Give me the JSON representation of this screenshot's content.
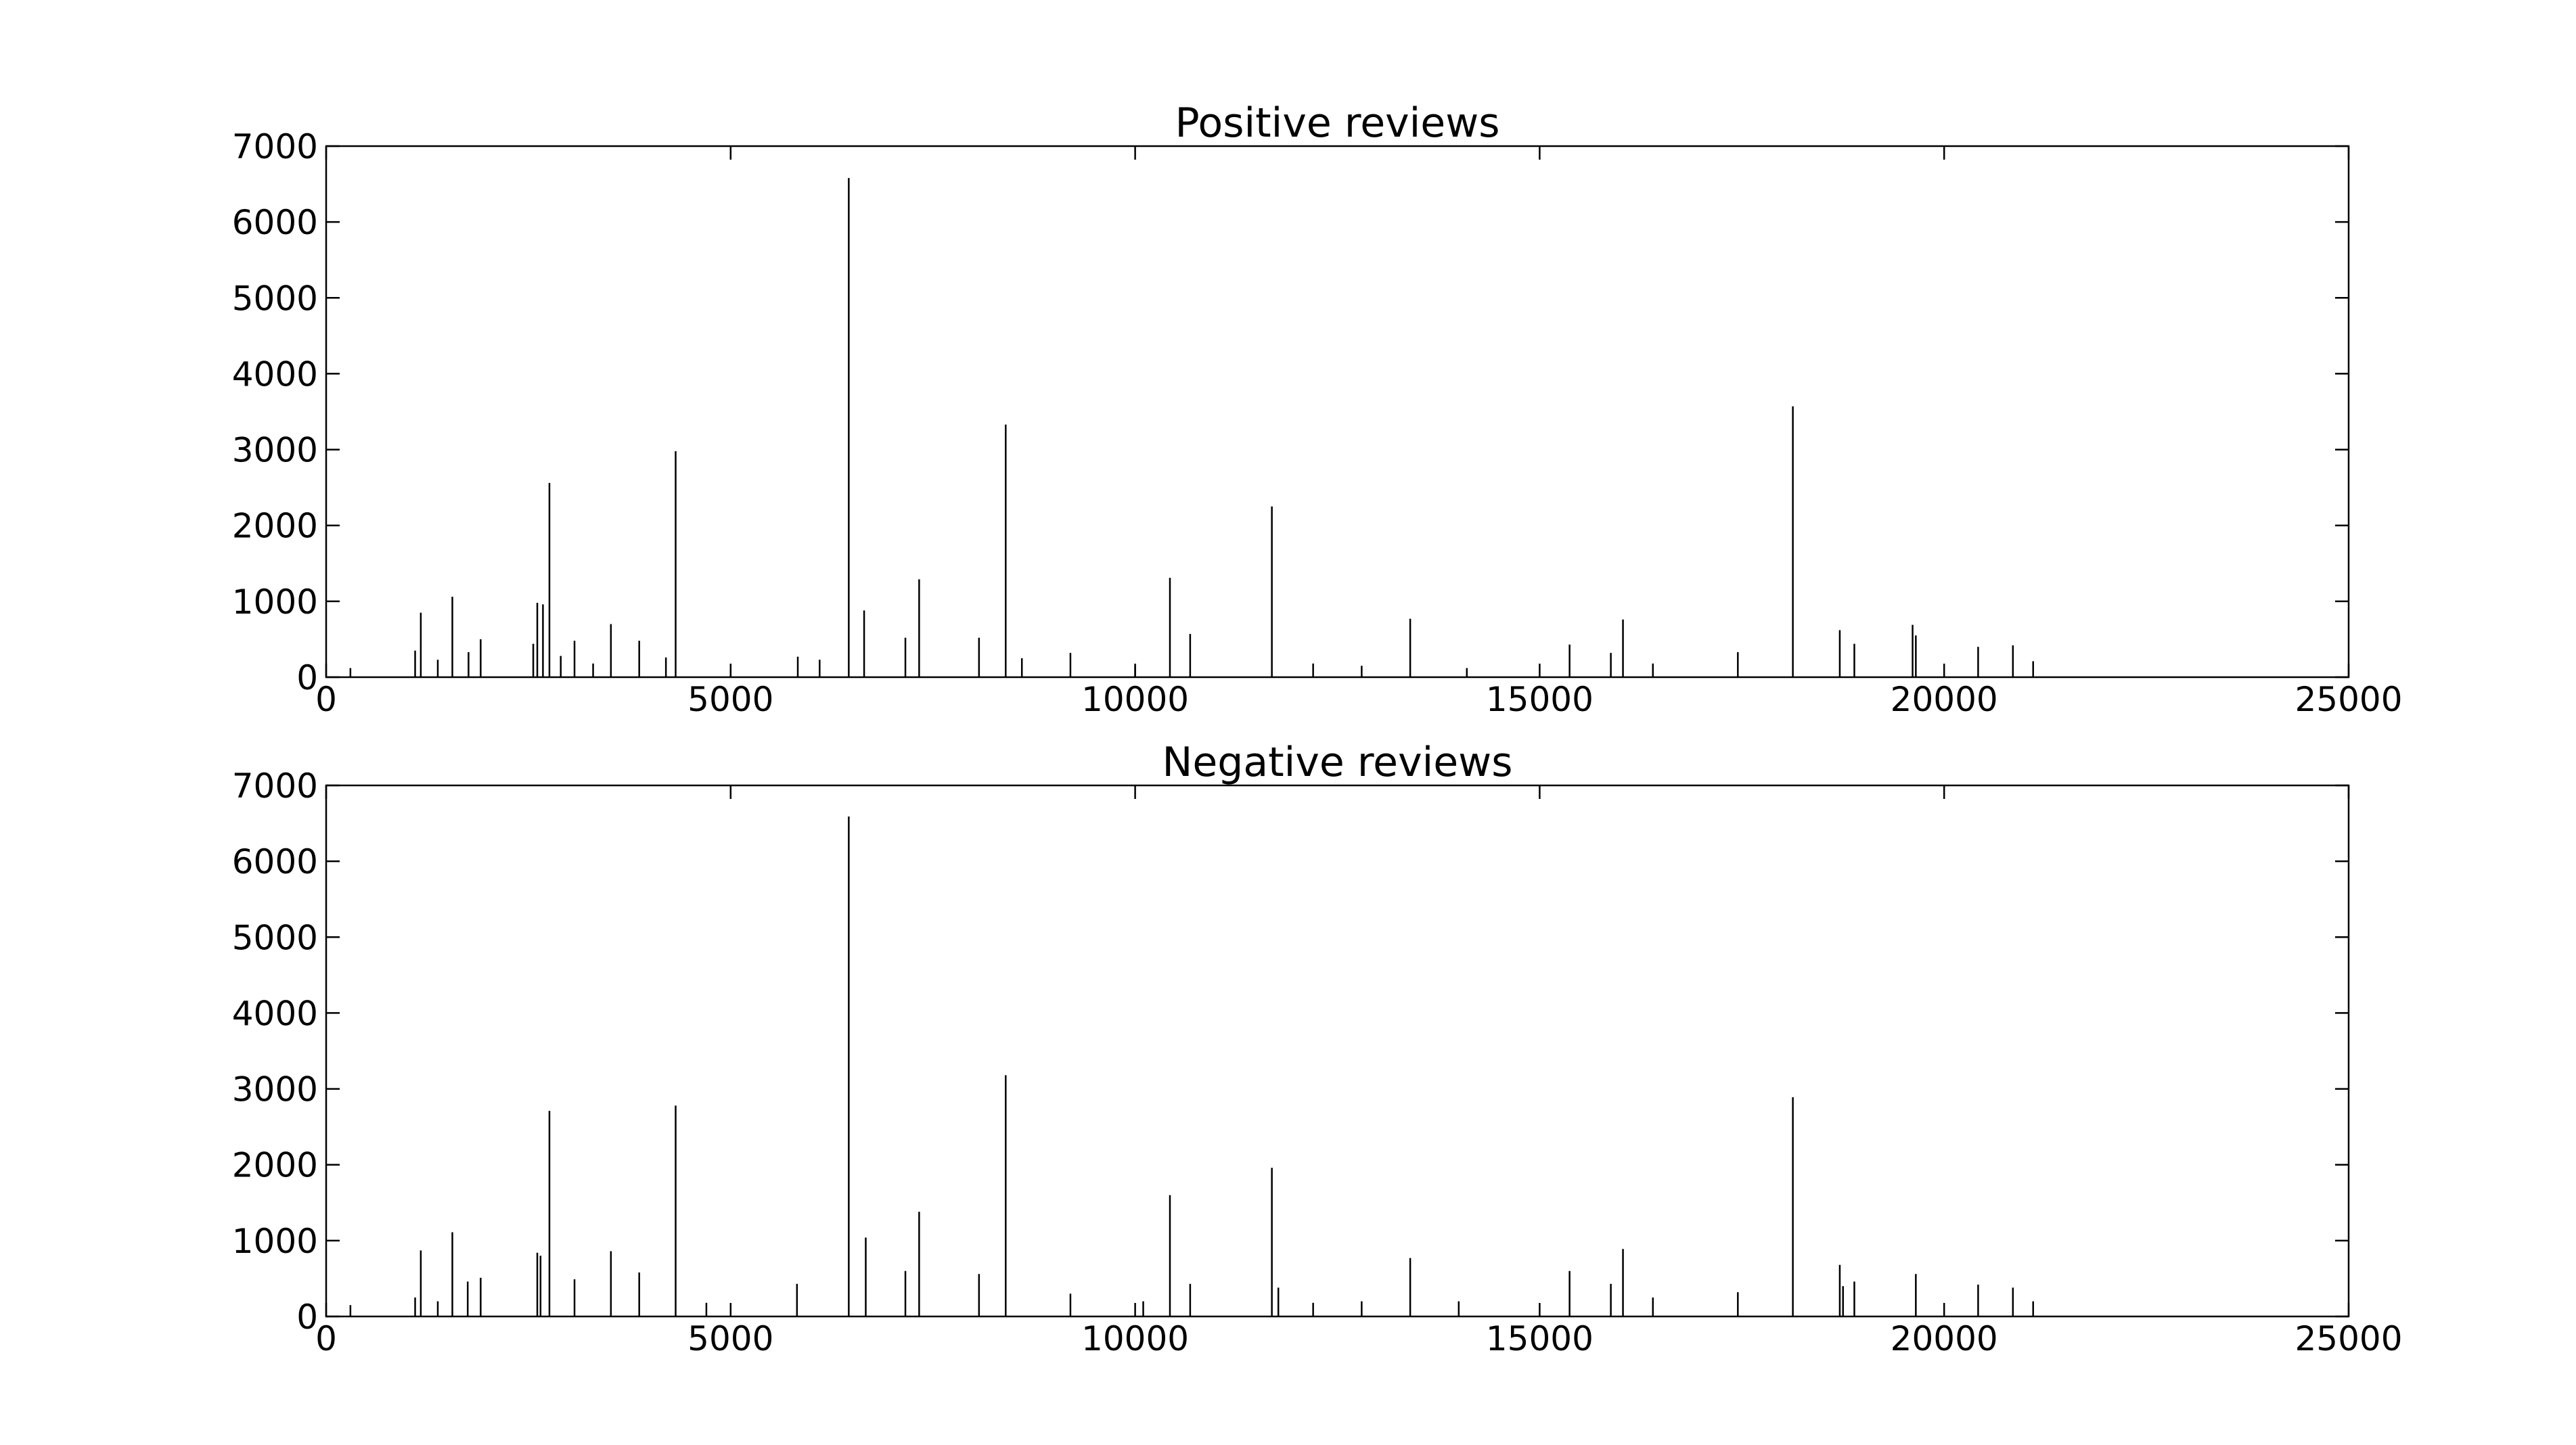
{
  "chart_data": [
    {
      "type": "bar",
      "title": "Positive reviews",
      "color": "#000000",
      "x": [
        300,
        1100,
        1170,
        1380,
        1560,
        1760,
        1910,
        2560,
        2610,
        2680,
        2760,
        2900,
        3070,
        3300,
        3520,
        3870,
        4200,
        4320,
        5000,
        5830,
        6100,
        6460,
        6650,
        7160,
        7330,
        8070,
        8400,
        8600,
        9200,
        10000,
        10430,
        10680,
        11690,
        12200,
        12800,
        13400,
        14100,
        15370,
        15880,
        16030,
        16400,
        17450,
        18130,
        18710,
        18890,
        19610,
        19650,
        20420,
        20850,
        21100
      ],
      "values": [
        120,
        350,
        850,
        230,
        1060,
        330,
        500,
        440,
        980,
        960,
        2560,
        280,
        480,
        180,
        700,
        480,
        260,
        2980,
        100,
        270,
        230,
        6580,
        880,
        520,
        1290,
        520,
        3330,
        250,
        320,
        150,
        1310,
        570,
        2250,
        180,
        150,
        770,
        120,
        430,
        320,
        760,
        180,
        330,
        3570,
        620,
        440,
        690,
        550,
        400,
        420,
        210
      ],
      "xlim": [
        0,
        25000
      ],
      "xticks": [
        0,
        5000,
        10000,
        15000,
        20000,
        25000
      ],
      "ylim": [
        0,
        7000
      ],
      "yticks": [
        0,
        1000,
        2000,
        3000,
        4000,
        5000,
        6000,
        7000
      ]
    },
    {
      "type": "bar",
      "title": "Negative reviews",
      "color": "#000000",
      "x": [
        300,
        1100,
        1170,
        1380,
        1560,
        1750,
        1910,
        2610,
        2650,
        2760,
        3070,
        3520,
        3870,
        4320,
        4700,
        5820,
        6460,
        6670,
        7160,
        7330,
        8070,
        8400,
        9200,
        10100,
        10430,
        10680,
        11690,
        11770,
        12200,
        12800,
        13400,
        14000,
        15370,
        15880,
        16030,
        16400,
        17450,
        18130,
        18710,
        18750,
        18890,
        19650,
        20420,
        20850,
        21100
      ],
      "values": [
        150,
        250,
        870,
        200,
        1110,
        460,
        510,
        840,
        800,
        2710,
        490,
        860,
        580,
        2780,
        180,
        430,
        6590,
        1040,
        600,
        1380,
        560,
        3180,
        300,
        200,
        1600,
        430,
        1960,
        380,
        180,
        200,
        770,
        200,
        600,
        430,
        890,
        250,
        320,
        2890,
        680,
        400,
        460,
        560,
        420,
        380,
        200
      ],
      "xlim": [
        0,
        25000
      ],
      "xticks": [
        0,
        5000,
        10000,
        15000,
        20000,
        25000
      ],
      "ylim": [
        0,
        7000
      ],
      "yticks": [
        0,
        1000,
        2000,
        3000,
        4000,
        5000,
        6000,
        7000
      ]
    }
  ]
}
